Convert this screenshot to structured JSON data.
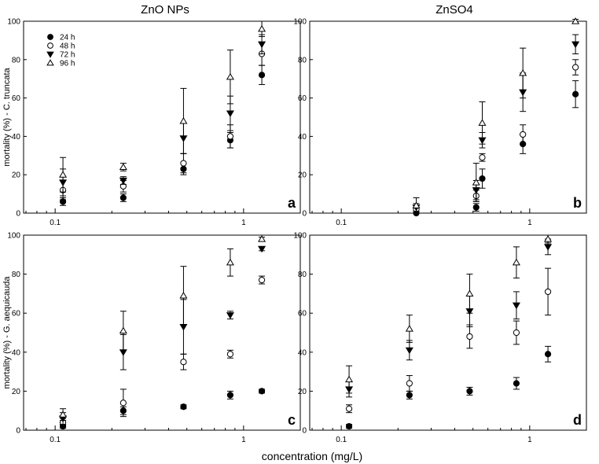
{
  "figure": {
    "column_titles": [
      "ZnO NPs",
      "ZnSO4"
    ],
    "row_ylabels": [
      "mortality (%) - C. truncata",
      "mortality (%) - G. aequicauda"
    ],
    "xlabel": "concentration (mg/L)"
  },
  "legend": {
    "series": [
      {
        "name": "24 h",
        "marker": "circle-filled"
      },
      {
        "name": "48 h",
        "marker": "circle-open"
      },
      {
        "name": "72 h",
        "marker": "triangle-down-filled"
      },
      {
        "name": "96 h",
        "marker": "triangle-up-open"
      }
    ]
  },
  "chart_data": [
    {
      "type": "scatter",
      "panel": "a",
      "column": "ZnO NPs",
      "ylabel": "mortality (%) - C. truncata",
      "xscale": "log",
      "xlim": [
        0.068,
        2.0
      ],
      "ylim": [
        0,
        100
      ],
      "xticks": [
        "0.1",
        "1"
      ],
      "yticks": [
        0,
        20,
        40,
        60,
        80,
        100
      ],
      "series": [
        {
          "name": "24 h",
          "points": [
            [
              0.11,
              6,
              2
            ],
            [
              0.23,
              8,
              2
            ],
            [
              0.48,
              23,
              3
            ],
            [
              0.85,
              38,
              4
            ],
            [
              1.25,
              72,
              5
            ]
          ]
        },
        {
          "name": "48 h",
          "points": [
            [
              0.11,
              12,
              5
            ],
            [
              0.23,
              14,
              3
            ],
            [
              0.48,
              26,
              5
            ],
            [
              0.85,
              40,
              6
            ],
            [
              1.25,
              83,
              6
            ]
          ]
        },
        {
          "name": "72 h",
          "points": [
            [
              0.11,
              16,
              7
            ],
            [
              0.23,
              17,
              2
            ],
            [
              0.48,
              39,
              8
            ],
            [
              0.85,
              52,
              9
            ],
            [
              1.25,
              88,
              5
            ]
          ]
        },
        {
          "name": "96 h",
          "points": [
            [
              0.11,
              20,
              9
            ],
            [
              0.23,
              24,
              2
            ],
            [
              0.48,
              48,
              17
            ],
            [
              0.85,
              71,
              14
            ],
            [
              1.25,
              96,
              4
            ]
          ]
        }
      ]
    },
    {
      "type": "scatter",
      "panel": "b",
      "column": "ZnSO4",
      "ylabel": "",
      "xscale": "log",
      "xlim": [
        0.068,
        2.0
      ],
      "ylim": [
        0,
        100
      ],
      "xticks": [
        "0.1",
        "1"
      ],
      "yticks": [
        0,
        20,
        40,
        60,
        80,
        100
      ],
      "series": [
        {
          "name": "24 h",
          "points": [
            [
              0.25,
              0,
              1
            ],
            [
              0.52,
              3,
              2
            ],
            [
              0.56,
              18,
              5
            ],
            [
              0.92,
              36,
              5
            ],
            [
              1.75,
              62,
              7
            ]
          ]
        },
        {
          "name": "48 h",
          "points": [
            [
              0.25,
              2,
              2
            ],
            [
              0.52,
              9,
              3
            ],
            [
              0.56,
              29,
              2
            ],
            [
              0.92,
              41,
              5
            ],
            [
              1.75,
              76,
              4
            ]
          ]
        },
        {
          "name": "72 h",
          "points": [
            [
              0.25,
              3,
              2
            ],
            [
              0.52,
              12,
              5
            ],
            [
              0.56,
              38,
              4
            ],
            [
              0.92,
              63,
              10
            ],
            [
              1.75,
              88,
              5
            ]
          ]
        },
        {
          "name": "96 h",
          "points": [
            [
              0.25,
              4,
              4
            ],
            [
              0.52,
              16,
              10
            ],
            [
              0.56,
              47,
              11
            ],
            [
              0.92,
              73,
              13
            ],
            [
              1.75,
              100,
              1
            ]
          ]
        }
      ]
    },
    {
      "type": "scatter",
      "panel": "c",
      "column": "ZnO NPs",
      "ylabel": "mortality (%) - G. aequicauda",
      "xscale": "log",
      "xlim": [
        0.068,
        2.0
      ],
      "ylim": [
        0,
        100
      ],
      "xticks": [
        "0.1",
        "1"
      ],
      "yticks": [
        0,
        20,
        40,
        60,
        80,
        100
      ],
      "series": [
        {
          "name": "24 h",
          "points": [
            [
              0.11,
              2,
              1
            ],
            [
              0.23,
              10,
              2
            ],
            [
              0.48,
              12,
              1
            ],
            [
              0.85,
              18,
              2
            ],
            [
              1.25,
              20,
              1
            ]
          ]
        },
        {
          "name": "48 h",
          "points": [
            [
              0.11,
              4,
              2
            ],
            [
              0.23,
              14,
              7
            ],
            [
              0.48,
              35,
              4
            ],
            [
              0.85,
              39,
              2
            ],
            [
              1.25,
              77,
              2
            ]
          ]
        },
        {
          "name": "72 h",
          "points": [
            [
              0.11,
              6,
              3
            ],
            [
              0.23,
              40,
              9
            ],
            [
              0.48,
              53,
              14
            ],
            [
              0.85,
              59,
              2
            ],
            [
              1.25,
              93,
              1
            ]
          ]
        },
        {
          "name": "96 h",
          "points": [
            [
              0.11,
              8,
              3
            ],
            [
              0.23,
              51,
              10
            ],
            [
              0.48,
              69,
              15
            ],
            [
              0.85,
              86,
              7
            ],
            [
              1.25,
              98,
              1
            ]
          ]
        }
      ]
    },
    {
      "type": "scatter",
      "panel": "d",
      "column": "ZnSO4",
      "ylabel": "",
      "xscale": "log",
      "xlim": [
        0.068,
        2.0
      ],
      "ylim": [
        0,
        100
      ],
      "xticks": [
        "0.1",
        "1"
      ],
      "yticks": [
        0,
        20,
        40,
        60,
        80,
        100
      ],
      "series": [
        {
          "name": "24 h",
          "points": [
            [
              0.11,
              2,
              1
            ],
            [
              0.23,
              18,
              2
            ],
            [
              0.48,
              20,
              2
            ],
            [
              0.85,
              24,
              3
            ],
            [
              1.25,
              39,
              4
            ]
          ]
        },
        {
          "name": "48 h",
          "points": [
            [
              0.11,
              11,
              2
            ],
            [
              0.23,
              24,
              4
            ],
            [
              0.48,
              48,
              6
            ],
            [
              0.85,
              50,
              6
            ],
            [
              1.25,
              71,
              12
            ]
          ]
        },
        {
          "name": "72 h",
          "points": [
            [
              0.11,
              21,
              4
            ],
            [
              0.23,
              41,
              5
            ],
            [
              0.48,
              61,
              8
            ],
            [
              0.85,
              64,
              7
            ],
            [
              1.25,
              94,
              4
            ]
          ]
        },
        {
          "name": "96 h",
          "points": [
            [
              0.11,
              26,
              7
            ],
            [
              0.23,
              52,
              7
            ],
            [
              0.48,
              70,
              10
            ],
            [
              0.85,
              86,
              8
            ],
            [
              1.25,
              98,
              2
            ]
          ]
        }
      ]
    }
  ]
}
